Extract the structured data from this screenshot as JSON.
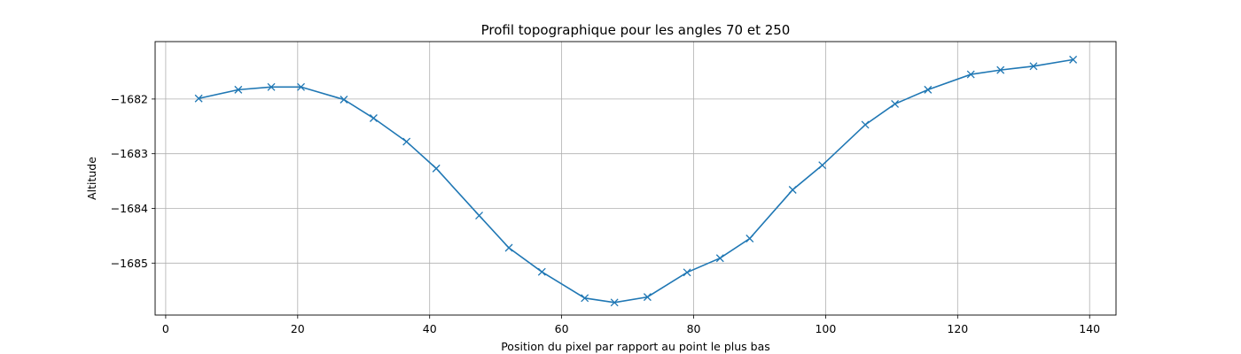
{
  "chart_data": {
    "type": "line",
    "title": "Profil topographique pour les angles 70 et 250",
    "xlabel": "Position du pixel par rapport au point le plus bas",
    "ylabel": "Altitude",
    "xlim": [
      -1.6,
      144.0
    ],
    "ylim": [
      -1685.95,
      -1680.95
    ],
    "xticks": [
      0,
      20,
      40,
      60,
      80,
      100,
      120,
      140
    ],
    "yticks": [
      -1682,
      -1683,
      -1684,
      -1685
    ],
    "xtick_labels": [
      "0",
      "20",
      "40",
      "60",
      "80",
      "100",
      "120",
      "140"
    ],
    "ytick_labels": [
      "−1682",
      "−1683",
      "−1684",
      "−1685"
    ],
    "grid": true,
    "line_color": "#1f77b4",
    "marker": "x",
    "series": [
      {
        "x": [
          5,
          11,
          16,
          20.5,
          27,
          31.5,
          36.5,
          41,
          47.5,
          52,
          57,
          63.5,
          68,
          73,
          79,
          84,
          88.5,
          95,
          99.5,
          106,
          110.5,
          115.5,
          122,
          126.5,
          131.5,
          137.5
        ],
        "values": [
          -1681.99,
          -1681.83,
          -1681.78,
          -1681.78,
          -1682.01,
          -1682.35,
          -1682.78,
          -1683.27,
          -1684.13,
          -1684.72,
          -1685.16,
          -1685.64,
          -1685.72,
          -1685.62,
          -1685.17,
          -1684.91,
          -1684.55,
          -1683.66,
          -1683.21,
          -1682.47,
          -1682.09,
          -1681.83,
          -1681.55,
          -1681.47,
          -1681.4,
          -1681.28
        ]
      }
    ]
  }
}
